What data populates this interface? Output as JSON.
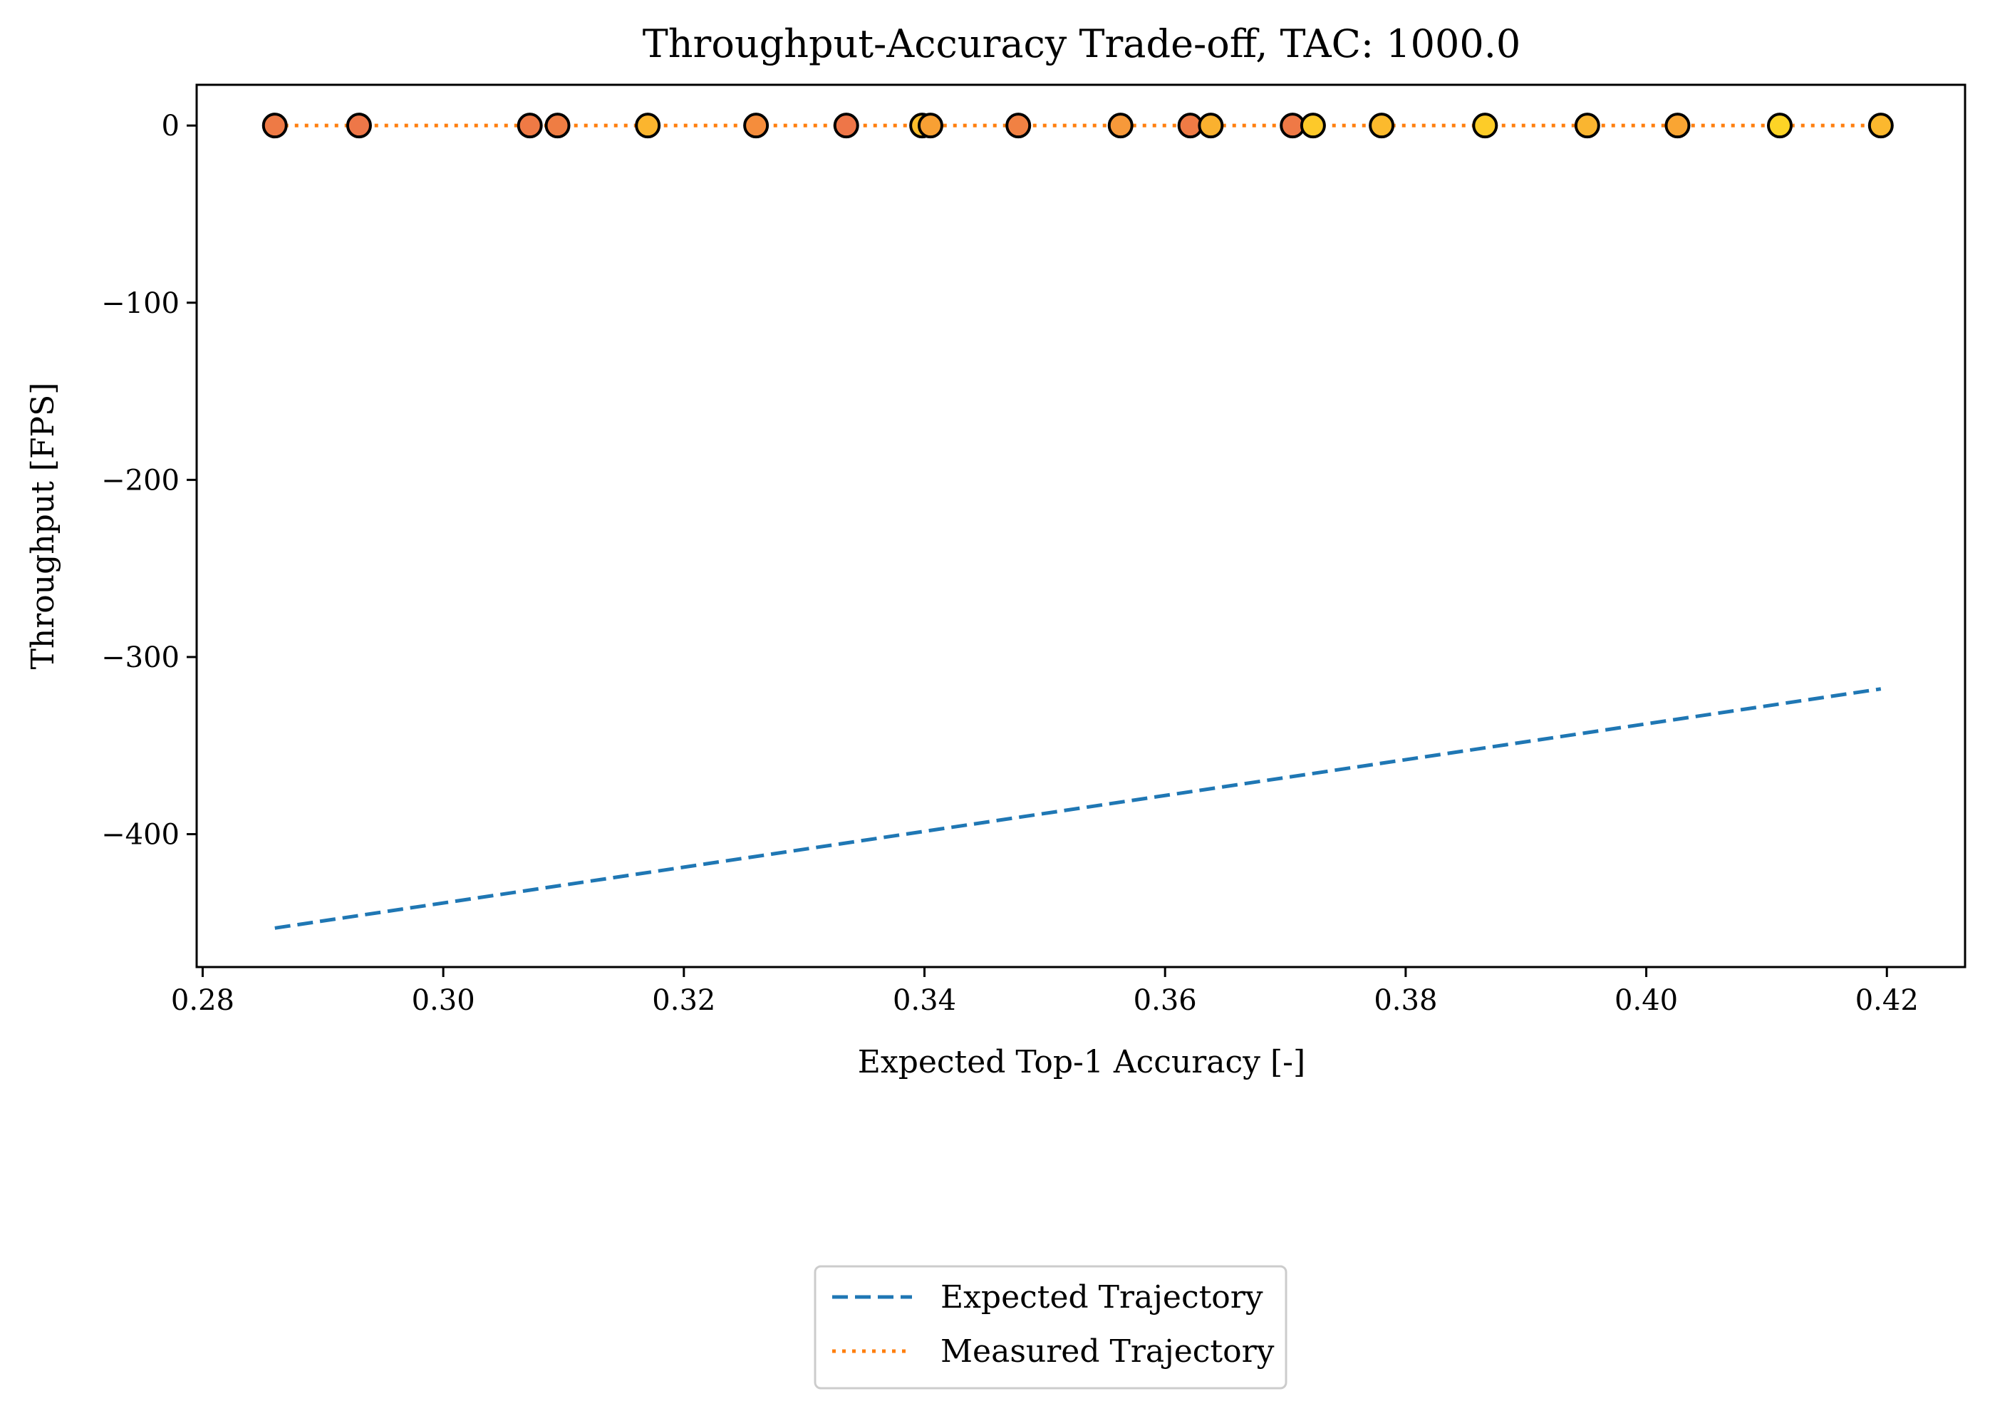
{
  "chart_data": {
    "type": "scatter",
    "title": "Throughput-Accuracy Trade-off, TAC: 1000.0",
    "xlabel": "Expected Top-1 Accuracy [-]",
    "ylabel": "Throughput [FPS]",
    "xlim": [
      0.2795,
      0.4265
    ],
    "ylim": [
      -475,
      23
    ],
    "xticks": [
      0.28,
      0.3,
      0.32,
      0.34,
      0.36,
      0.38,
      0.4,
      0.42
    ],
    "xtick_labels": [
      "0.28",
      "0.30",
      "0.32",
      "0.34",
      "0.36",
      "0.38",
      "0.40",
      "0.42"
    ],
    "yticks": [
      0,
      -100,
      -200,
      -300,
      -400
    ],
    "ytick_labels": [
      "0",
      "−100",
      "−200",
      "−300",
      "−400"
    ],
    "grid": false,
    "legend_position": "bottom-center, below the axes",
    "series": [
      {
        "name": "Expected Trajectory",
        "kind": "line",
        "style": "dashed",
        "color": "#1f77b4",
        "x": [
          0.286,
          0.4195
        ],
        "y": [
          -453,
          -318
        ]
      },
      {
        "name": "Measured Trajectory",
        "kind": "line",
        "style": "dotted",
        "color": "#ff7f0e",
        "x": [
          0.286,
          0.4195
        ],
        "y": [
          0,
          0
        ]
      },
      {
        "kind": "points",
        "edge_color": "#000000",
        "points": [
          {
            "x": 0.286,
            "y": 0,
            "color": "#ee7a45"
          },
          {
            "x": 0.293,
            "y": 0,
            "color": "#ee7748"
          },
          {
            "x": 0.3072,
            "y": 0,
            "color": "#ef7a45"
          },
          {
            "x": 0.3095,
            "y": 0,
            "color": "#ef7d43"
          },
          {
            "x": 0.317,
            "y": 0,
            "color": "#fbb52e"
          },
          {
            "x": 0.326,
            "y": 0,
            "color": "#f58d3c"
          },
          {
            "x": 0.3335,
            "y": 0,
            "color": "#ee7648"
          },
          {
            "x": 0.3398,
            "y": 0,
            "color": "#fcbd2c"
          },
          {
            "x": 0.3405,
            "y": 0,
            "color": "#f8a034"
          },
          {
            "x": 0.3478,
            "y": 0,
            "color": "#f18143"
          },
          {
            "x": 0.3563,
            "y": 0,
            "color": "#f7993a"
          },
          {
            "x": 0.3621,
            "y": 0,
            "color": "#ef7b45"
          },
          {
            "x": 0.3638,
            "y": 0,
            "color": "#fab12f"
          },
          {
            "x": 0.3706,
            "y": 0,
            "color": "#ef7946"
          },
          {
            "x": 0.3723,
            "y": 0,
            "color": "#fdc92a"
          },
          {
            "x": 0.378,
            "y": 0,
            "color": "#fcba2d"
          },
          {
            "x": 0.3866,
            "y": 0,
            "color": "#fdcc28"
          },
          {
            "x": 0.3951,
            "y": 0,
            "color": "#fab530"
          },
          {
            "x": 0.4026,
            "y": 0,
            "color": "#f9a533"
          },
          {
            "x": 0.4111,
            "y": 0,
            "color": "#fdd426"
          },
          {
            "x": 0.4195,
            "y": 0,
            "color": "#fcb82e"
          }
        ]
      }
    ]
  }
}
